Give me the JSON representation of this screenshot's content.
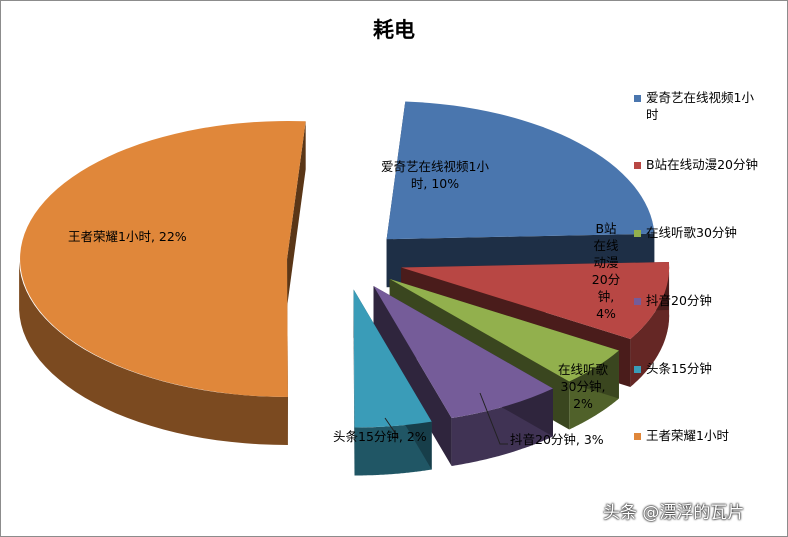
{
  "chart_data": {
    "type": "pie",
    "title": "耗电",
    "slices": [
      {
        "name": "爱奇艺在线视频1小时",
        "percent": 10,
        "label": "爱奇艺在线视频1小时, 10%",
        "color": "#4a76ae"
      },
      {
        "name": "B站在线动漫20分钟",
        "percent": 4,
        "label": "B站在线动漫20分钟, 4%",
        "color": "#b84744"
      },
      {
        "name": "在线听歌30分钟",
        "percent": 2,
        "label": "在线听歌30分钟, 2%",
        "color": "#92b04d"
      },
      {
        "name": "抖音20分钟",
        "percent": 3,
        "label": "抖音20分钟, 3%",
        "color": "#755c99"
      },
      {
        "name": "头条15分钟",
        "percent": 2,
        "label": "头条15分钟, 2%",
        "color": "#3a9cb8"
      },
      {
        "name": "王者荣耀1小时",
        "percent": 22,
        "label": "王者荣耀1小时, 22%",
        "color": "#e0873a"
      }
    ],
    "legend_position": "right"
  },
  "labels": {
    "iqiyi_lines": [
      "爱奇艺在线视频1小",
      "时, 10%"
    ],
    "bili_lines": [
      "B站",
      "在线",
      "动漫",
      "20分",
      "钟,",
      "4%"
    ],
    "music_lines": [
      "在线听歌",
      "30分钟,",
      "2%"
    ],
    "douyin": "抖音20分钟, 3%",
    "toutiao": "头条15分钟, 2%",
    "wzry": "王者荣耀1小时, 22%"
  },
  "legend": {
    "iqiyi_lines": [
      "爱奇艺在线视频1小",
      "时"
    ]
  },
  "watermark": "头条 @漂浮的瓦片"
}
